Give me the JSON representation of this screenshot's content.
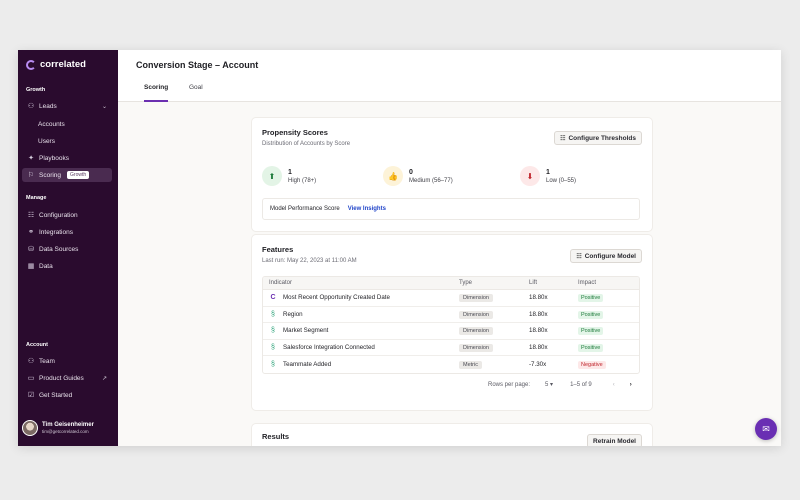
{
  "app": {
    "name": "correlated"
  },
  "sidebar": {
    "growth_label": "Growth",
    "leads": "Leads",
    "accounts": "Accounts",
    "users": "Users",
    "playbooks": "Playbooks",
    "scoring": "Scoring",
    "scoring_badge": "Growth",
    "manage_label": "Manage",
    "configuration": "Configuration",
    "integrations": "Integrations",
    "data_sources": "Data Sources",
    "data": "Data",
    "account_label": "Account",
    "team": "Team",
    "product_guides": "Product Guides",
    "get_started": "Get Started",
    "user_name": "Tim Geisenheimer",
    "user_email": "tim@getcorrelated.com"
  },
  "header": {
    "title": "Conversion Stage – Account",
    "tabs": [
      {
        "label": "Scoring"
      },
      {
        "label": "Goal"
      }
    ]
  },
  "propensity": {
    "title": "Propensity Scores",
    "subtitle": "Distribution of Accounts by Score",
    "button": "Configure Thresholds",
    "high": {
      "count": "1",
      "label": "High (78+)"
    },
    "medium": {
      "count": "0",
      "label": "Medium (56–77)"
    },
    "low": {
      "count": "1",
      "label": "Low (0–55)"
    },
    "model_perf_label": "Model Performance Score",
    "view_insights": "View Insights"
  },
  "features": {
    "title": "Features",
    "last_run": "Last run: May 22, 2023 at 11:00 AM",
    "button": "Configure Model",
    "columns": {
      "indicator": "Indicator",
      "type": "Type",
      "lift": "Lift",
      "impact": "Impact"
    },
    "rows": [
      {
        "indicator": "Most Recent Opportunity Created Date",
        "type": "Dimension",
        "lift": "18.80x",
        "impact": "Positive"
      },
      {
        "indicator": "Region",
        "type": "Dimension",
        "lift": "18.80x",
        "impact": "Positive"
      },
      {
        "indicator": "Market Segment",
        "type": "Dimension",
        "lift": "18.80x",
        "impact": "Positive"
      },
      {
        "indicator": "Salesforce Integration Connected",
        "type": "Dimension",
        "lift": "18.80x",
        "impact": "Positive"
      },
      {
        "indicator": "Teammate Added",
        "type": "Metric",
        "lift": "-7.30x",
        "impact": "Negative"
      }
    ],
    "pager": {
      "rows_label": "Rows per page:",
      "rows_value": "5",
      "range": "1–5 of 9"
    }
  },
  "results": {
    "title": "Results",
    "button": "Retrain Model"
  },
  "colors": {
    "sidebar": "#2a0b2e",
    "accent": "#6b2fb0",
    "link": "#2145c9"
  }
}
